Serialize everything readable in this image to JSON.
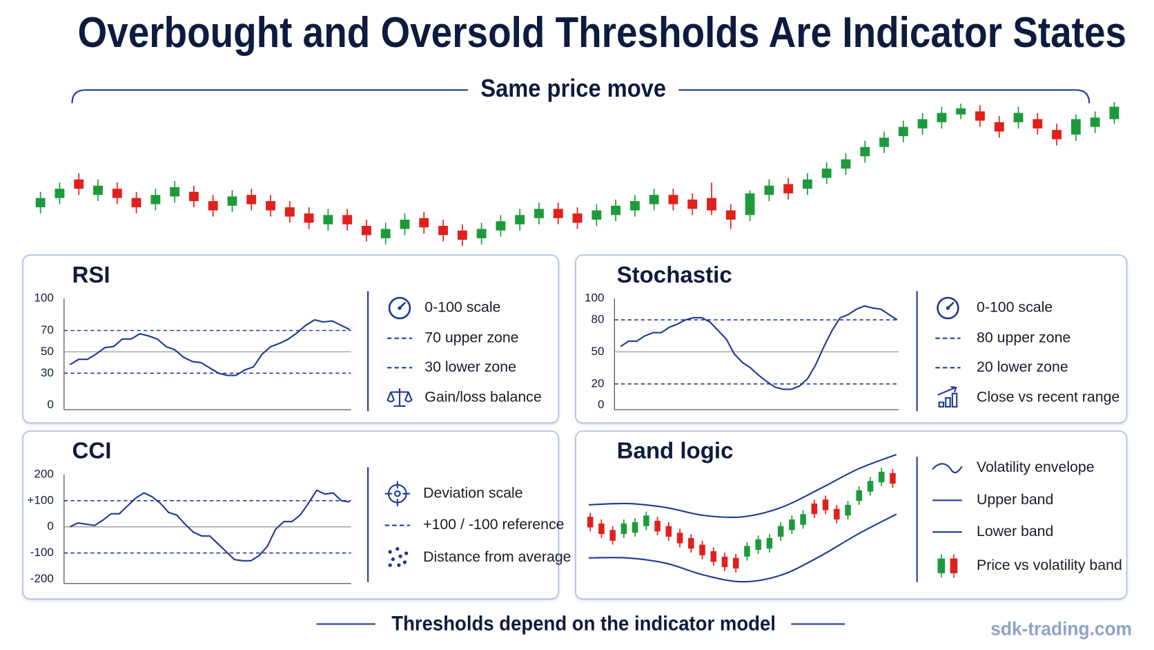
{
  "title": "Overbought and Oversold Thresholds Are Indicator States",
  "subtitle": "Same price move",
  "footer": "Thresholds depend on the indicator model",
  "watermark": "sdk-trading.com",
  "chart_data": [
    {
      "type": "candlestick",
      "ylim": [
        0,
        100
      ],
      "up_color": "#1e9a3c",
      "down_color": "#e0201b",
      "candles": [
        [
          28,
          38,
          24,
          34
        ],
        [
          34,
          44,
          30,
          40
        ],
        [
          46,
          50,
          36,
          40
        ],
        [
          36,
          46,
          32,
          42
        ],
        [
          40,
          44,
          30,
          34
        ],
        [
          34,
          38,
          24,
          28
        ],
        [
          30,
          40,
          26,
          36
        ],
        [
          35,
          45,
          31,
          41
        ],
        [
          38,
          42,
          28,
          32
        ],
        [
          32,
          36,
          22,
          26
        ],
        [
          29,
          39,
          25,
          35
        ],
        [
          36,
          40,
          26,
          30
        ],
        [
          32,
          36,
          22,
          26
        ],
        [
          28,
          32,
          18,
          22
        ],
        [
          24,
          28,
          14,
          18
        ],
        [
          17,
          27,
          13,
          23
        ],
        [
          23,
          27,
          13,
          17
        ],
        [
          16,
          20,
          6,
          10
        ],
        [
          8,
          18,
          4,
          14
        ],
        [
          14,
          24,
          10,
          20
        ],
        [
          21,
          25,
          11,
          15
        ],
        [
          16,
          20,
          6,
          10
        ],
        [
          13,
          17,
          3,
          7
        ],
        [
          8,
          18,
          4,
          14
        ],
        [
          13,
          23,
          9,
          19
        ],
        [
          17,
          27,
          13,
          23
        ],
        [
          21,
          31,
          17,
          27
        ],
        [
          27,
          31,
          17,
          21
        ],
        [
          24,
          28,
          14,
          18
        ],
        [
          20,
          30,
          16,
          26
        ],
        [
          23,
          33,
          19,
          29
        ],
        [
          26,
          36,
          22,
          32
        ],
        [
          30,
          40,
          26,
          36
        ],
        [
          36,
          40,
          26,
          30
        ],
        [
          33,
          37,
          23,
          27
        ],
        [
          34,
          44,
          23,
          26
        ],
        [
          26,
          30,
          14,
          20
        ],
        [
          23,
          39,
          19,
          37
        ],
        [
          36,
          46,
          32,
          42
        ],
        [
          43,
          47,
          33,
          37
        ],
        [
          40,
          50,
          36,
          46
        ],
        [
          47,
          57,
          43,
          53
        ],
        [
          53,
          63,
          49,
          59
        ],
        [
          61,
          71,
          57,
          67
        ],
        [
          67,
          77,
          63,
          73
        ],
        [
          74,
          84,
          70,
          80
        ],
        [
          79,
          89,
          75,
          85
        ],
        [
          83,
          93,
          79,
          89
        ],
        [
          88,
          95,
          85,
          92
        ],
        [
          90,
          94,
          80,
          84
        ],
        [
          83,
          87,
          73,
          77
        ],
        [
          83,
          93,
          79,
          89
        ],
        [
          85,
          89,
          75,
          79
        ],
        [
          78,
          82,
          68,
          72
        ],
        [
          75,
          88,
          71,
          85
        ],
        [
          80,
          90,
          76,
          86
        ],
        [
          85,
          96,
          82,
          93
        ]
      ]
    },
    {
      "type": "line",
      "title": "RSI",
      "color": "#1f3a93",
      "ylim": [
        0,
        100
      ],
      "yticks": [
        100,
        70,
        50,
        30,
        0
      ],
      "thresholds": [
        70,
        30
      ],
      "midline": 50,
      "values": [
        38,
        43,
        43,
        48,
        54,
        55,
        62,
        62,
        67,
        65,
        62,
        55,
        52,
        45,
        41,
        40,
        35,
        30,
        28,
        28,
        33,
        36,
        48,
        55,
        58,
        62,
        68,
        75,
        80,
        78,
        79,
        75,
        71
      ],
      "legend": [
        "0-100 scale",
        "70 upper zone",
        "30 lower zone",
        "Gain/loss balance"
      ]
    },
    {
      "type": "line",
      "title": "Stochastic",
      "color": "#1f3a93",
      "ylim": [
        0,
        100
      ],
      "yticks": [
        100,
        80,
        50,
        20,
        0
      ],
      "thresholds": [
        80,
        20
      ],
      "midline": 50,
      "values": [
        55,
        60,
        60,
        65,
        68,
        68,
        73,
        76,
        80,
        82,
        82,
        78,
        70,
        62,
        48,
        40,
        35,
        28,
        22,
        17,
        15,
        15,
        18,
        25,
        38,
        55,
        70,
        82,
        85,
        90,
        93,
        91,
        90,
        85,
        80
      ],
      "legend": [
        "0-100 scale",
        "80 upper zone",
        "20 lower zone",
        "Close vs recent range"
      ]
    },
    {
      "type": "line",
      "title": "CCI",
      "color": "#1f3a93",
      "ylim": [
        -200,
        200
      ],
      "yticks": [
        200,
        {
          "value": 100,
          "label": "+100"
        },
        0,
        -100,
        -200
      ],
      "thresholds": [
        100,
        -100
      ],
      "midline": 0,
      "values": [
        0,
        15,
        10,
        5,
        25,
        50,
        50,
        80,
        110,
        130,
        115,
        90,
        55,
        45,
        10,
        -20,
        -35,
        -35,
        -65,
        -95,
        -125,
        -130,
        -130,
        -110,
        -75,
        -10,
        20,
        20,
        45,
        90,
        140,
        125,
        130,
        100,
        95
      ],
      "legend": [
        "Deviation scale",
        "+100 / -100 reference",
        "Distance from average"
      ]
    },
    {
      "type": "band",
      "title": "Band logic",
      "color": "#1f3a93",
      "up_color": "#1e9a3c",
      "down_color": "#e0201b",
      "ylim": [
        0,
        100
      ],
      "upper": [
        61,
        62,
        59,
        53,
        52,
        59,
        73,
        88,
        99
      ],
      "lower": [
        21,
        21,
        17,
        8,
        3,
        8,
        22,
        39,
        54
      ],
      "candles": [
        [
          52,
          55,
          41,
          44
        ],
        [
          47,
          50,
          36,
          39
        ],
        [
          42,
          45,
          31,
          34
        ],
        [
          39,
          50,
          36,
          47
        ],
        [
          40,
          51,
          37,
          48
        ],
        [
          45,
          56,
          42,
          53
        ],
        [
          49,
          52,
          38,
          41
        ],
        [
          45,
          48,
          34,
          37
        ],
        [
          40,
          43,
          29,
          32
        ],
        [
          36,
          39,
          25,
          28
        ],
        [
          31,
          34,
          20,
          23
        ],
        [
          26,
          29,
          15,
          18
        ],
        [
          22,
          25,
          11,
          14
        ],
        [
          21,
          24,
          10,
          13
        ],
        [
          22,
          33,
          19,
          30
        ],
        [
          27,
          38,
          24,
          35
        ],
        [
          28,
          39,
          25,
          36
        ],
        [
          37,
          48,
          34,
          45
        ],
        [
          42,
          53,
          39,
          50
        ],
        [
          46,
          57,
          43,
          54
        ],
        [
          62,
          65,
          51,
          54
        ],
        [
          65,
          68,
          54,
          57
        ],
        [
          58,
          61,
          47,
          50
        ],
        [
          53,
          64,
          50,
          61
        ],
        [
          64,
          75,
          61,
          72
        ],
        [
          71,
          82,
          68,
          79
        ],
        [
          78,
          89,
          75,
          86
        ],
        [
          85,
          88,
          74,
          77
        ]
      ],
      "legend": [
        "Volatility envelope",
        "Upper band",
        "Lower band",
        "Price vs volatility band"
      ]
    }
  ]
}
